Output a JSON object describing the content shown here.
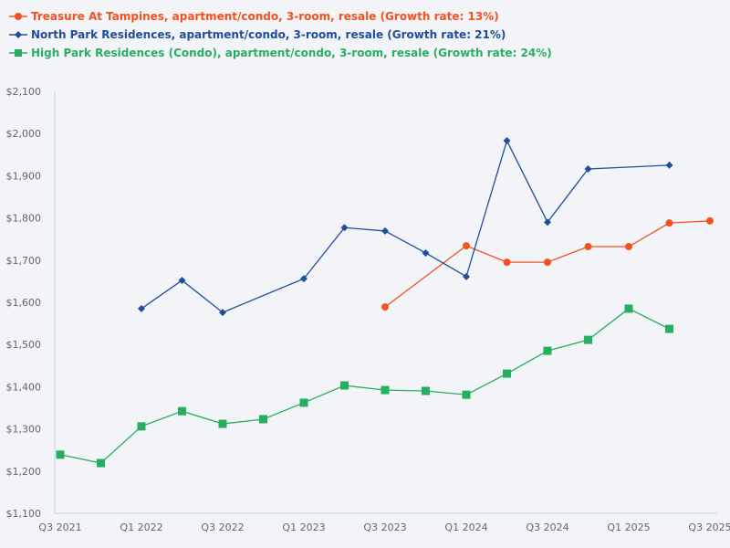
{
  "legend": {
    "items": [
      {
        "label": "Treasure At Tampines, apartment/condo, 3-room, resale (Growth rate: 13%)",
        "color": "#f4511e",
        "marker": "circle"
      },
      {
        "label": "North Park Residences, apartment/condo, 3-room, resale (Growth rate: 21%)",
        "color": "#1f4e9c",
        "marker": "diamond"
      },
      {
        "label": "High Park Residences (Condo), apartment/condo, 3-room, resale (Growth rate: 24%)",
        "color": "#27ae60",
        "marker": "square"
      }
    ]
  },
  "chart_data": {
    "type": "line",
    "title": "",
    "xlabel": "",
    "ylabel": "",
    "ylim": [
      1100,
      2100
    ],
    "y_ticks": [
      "$1,100",
      "$1,200",
      "$1,300",
      "$1,400",
      "$1,500",
      "$1,600",
      "$1,700",
      "$1,800",
      "$1,900",
      "$2,000",
      "$2,100"
    ],
    "x_tick_labels": [
      "Q3 2021",
      "Q1 2022",
      "Q3 2022",
      "Q1 2023",
      "Q3 2023",
      "Q1 2024",
      "Q3 2024",
      "Q1 2025",
      "Q3 2025"
    ],
    "categories": [
      "Q3 2021",
      "Q4 2021",
      "Q1 2022",
      "Q2 2022",
      "Q3 2022",
      "Q4 2022",
      "Q1 2023",
      "Q2 2023",
      "Q3 2023",
      "Q4 2023",
      "Q1 2024",
      "Q2 2024",
      "Q3 2024",
      "Q4 2024",
      "Q1 2025",
      "Q2 2025",
      "Q3 2025"
    ],
    "grid": false,
    "legend_position": "top-left",
    "series": [
      {
        "name": "Treasure At Tampines, apartment/condo, 3-room, resale (Growth rate: 13%)",
        "color": "#f4511e",
        "marker": "circle",
        "values": [
          null,
          null,
          null,
          null,
          null,
          null,
          null,
          null,
          1589,
          null,
          1734,
          1695,
          1695,
          1732,
          1732,
          1788,
          1793
        ]
      },
      {
        "name": "North Park Residences, apartment/condo, 3-room, resale (Growth rate: 21%)",
        "color": "#1f4e9c",
        "marker": "diamond",
        "values": [
          null,
          null,
          1585,
          1652,
          1576,
          null,
          1656,
          1777,
          1769,
          1717,
          1661,
          1983,
          1790,
          1916,
          null,
          1925,
          null
        ]
      },
      {
        "name": "High Park Residences (Condo), apartment/condo, 3-room, resale (Growth rate: 24%)",
        "color": "#27ae60",
        "marker": "square",
        "values": [
          1239,
          1219,
          1306,
          1342,
          1312,
          1323,
          1362,
          1403,
          1392,
          1390,
          1381,
          1431,
          1485,
          1511,
          1585,
          1537,
          null
        ]
      }
    ]
  }
}
